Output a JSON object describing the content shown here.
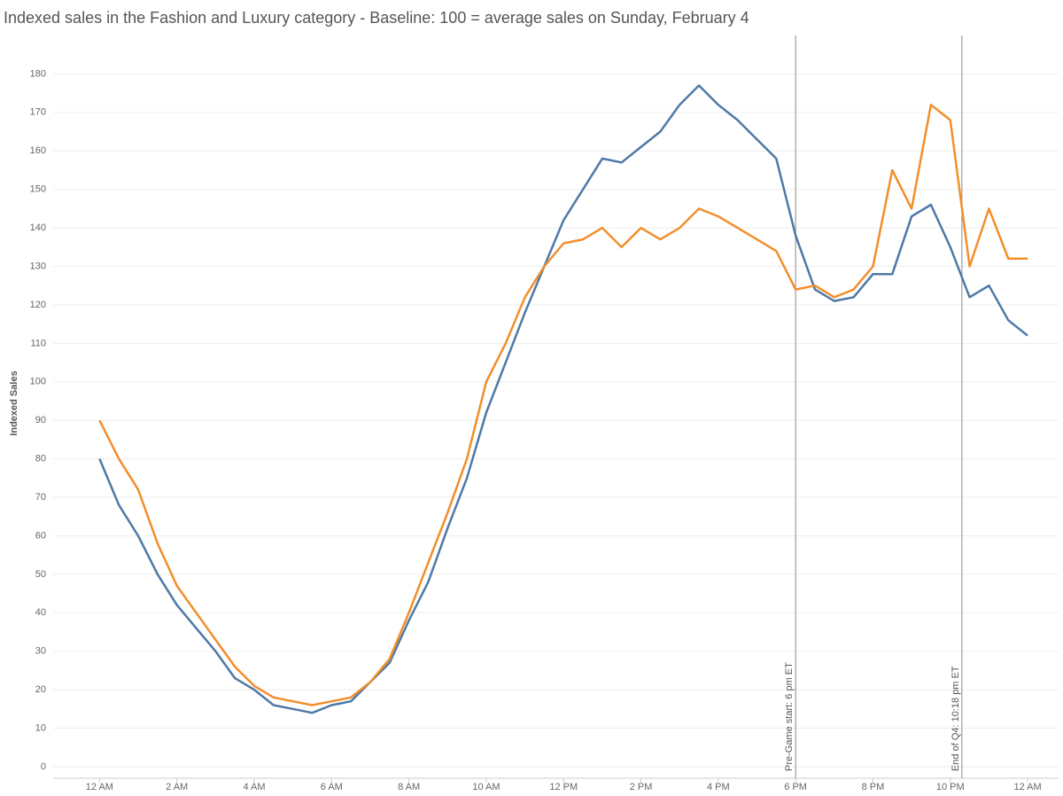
{
  "chart_data": {
    "type": "line",
    "title": "Indexed sales in the Fashion and Luxury category - Baseline: 100 = average sales on Sunday, February 4",
    "y_label": "Indexed Sales",
    "x": [
      0,
      0.5,
      1,
      1.5,
      2,
      2.5,
      3,
      3.5,
      4,
      4.5,
      5,
      5.5,
      6,
      6.5,
      7,
      7.5,
      8,
      8.5,
      9,
      9.5,
      10,
      10.5,
      11,
      11.5,
      12,
      12.5,
      13,
      13.5,
      14,
      14.5,
      15,
      15.5,
      16,
      16.5,
      17,
      17.5,
      18,
      18.5,
      19,
      19.5,
      20,
      20.5,
      21,
      21.5,
      22,
      22.5,
      23,
      23.5,
      24
    ],
    "series": [
      {
        "color": "#4e79a7",
        "values": [
          80,
          68,
          60,
          50,
          42,
          36,
          30,
          23,
          20,
          16,
          15,
          14,
          16,
          17,
          22,
          27,
          38,
          48,
          62,
          75,
          92,
          105,
          118,
          130,
          142,
          150,
          158,
          157,
          161,
          165,
          172,
          177,
          172,
          168,
          163,
          158,
          138,
          124,
          121,
          122,
          128,
          128,
          143,
          146,
          135,
          122,
          125,
          116,
          112
        ]
      },
      {
        "color": "#f28e2b",
        "values": [
          90,
          80,
          72,
          58,
          47,
          40,
          33,
          26,
          21,
          18,
          17,
          16,
          17,
          18,
          22,
          28,
          40,
          53,
          66,
          80,
          100,
          110,
          122,
          130,
          136,
          137,
          140,
          135,
          140,
          137,
          140,
          145,
          143,
          140,
          137,
          134,
          124,
          125,
          122,
          124,
          130,
          155,
          145,
          172,
          168,
          130,
          145,
          132,
          132
        ]
      }
    ],
    "reference_lines": [
      {
        "x": 18,
        "label": "Pre-Game start: 6 pm ET"
      },
      {
        "x": 22.3,
        "label": "End of Q4: 10:18 pm ET"
      }
    ],
    "xlim": [
      -1.2,
      24.8
    ],
    "xticks": [
      {
        "value": 0,
        "label": "12 AM"
      },
      {
        "value": 2,
        "label": "2 AM"
      },
      {
        "value": 4,
        "label": "4 AM"
      },
      {
        "value": 6,
        "label": "6 AM"
      },
      {
        "value": 8,
        "label": "8 AM"
      },
      {
        "value": 10,
        "label": "10 AM"
      },
      {
        "value": 12,
        "label": "12 PM"
      },
      {
        "value": 14,
        "label": "2 PM"
      },
      {
        "value": 16,
        "label": "4 PM"
      },
      {
        "value": 18,
        "label": "6 PM"
      },
      {
        "value": 20,
        "label": "8 PM"
      },
      {
        "value": 22,
        "label": "10 PM"
      },
      {
        "value": 24,
        "label": "12 AM"
      }
    ],
    "ylim": [
      -3,
      190
    ],
    "yticks": [
      0,
      10,
      20,
      30,
      40,
      50,
      60,
      70,
      80,
      90,
      100,
      110,
      120,
      130,
      140,
      150,
      160,
      170,
      180
    ],
    "grid": true
  }
}
